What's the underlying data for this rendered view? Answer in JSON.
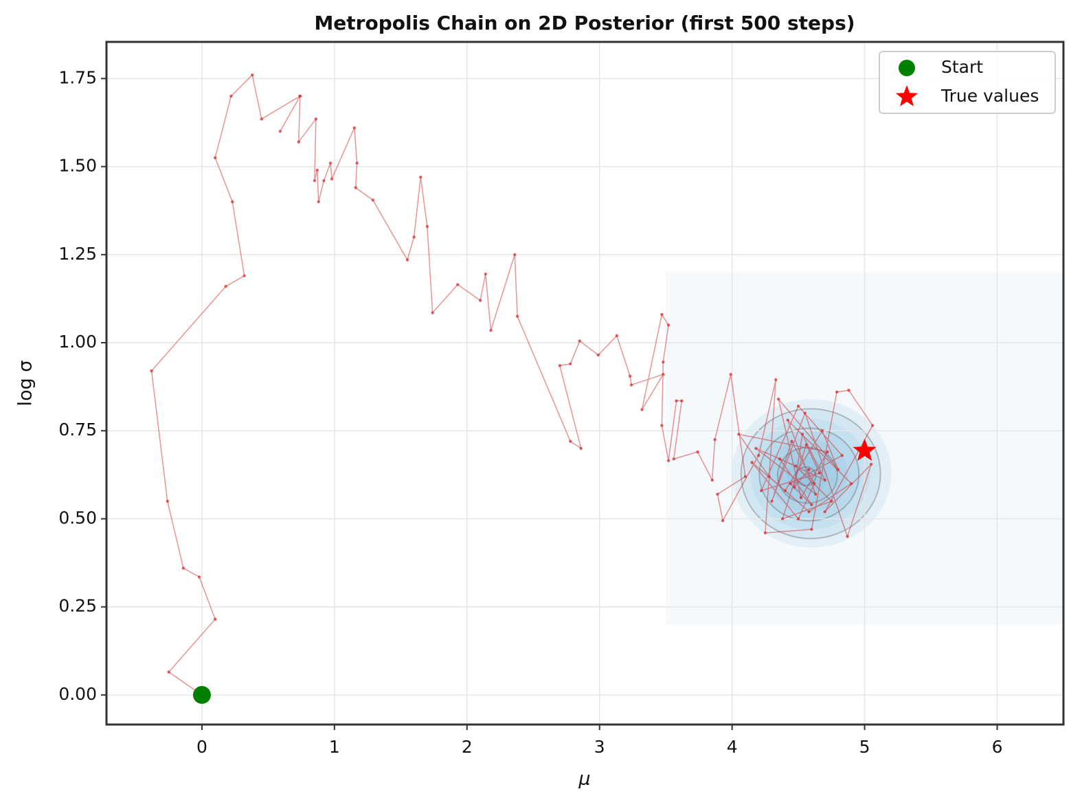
{
  "chart_data": {
    "type": "trace",
    "title": "Metropolis Chain on 2D Posterior (first 500 steps)",
    "x_label": "μ",
    "y_label": "log σ",
    "xlim": [
      -0.72,
      6.5
    ],
    "ylim": [
      -0.084,
      1.854
    ],
    "xticks": [
      0,
      1,
      2,
      3,
      4,
      5,
      6
    ],
    "yticks": [
      {
        "value": 0,
        "label": "0.00"
      },
      0.25,
      {
        "value": 0.5,
        "label": "0.50"
      },
      0.75,
      {
        "value": 1,
        "label": "1.00"
      },
      1.25,
      {
        "value": 1.5,
        "label": "1.50"
      },
      1.75
    ],
    "grid": true,
    "legend": "upper right",
    "posterior": {
      "center": [
        4.55,
        0.62
      ],
      "xlim": [
        3.5,
        6.5
      ],
      "ylim": [
        0.2,
        1.2
      ],
      "color": "#6baed6"
    },
    "chain": {
      "color": "#d62728",
      "x": [
        0,
        -0.25,
        0.1,
        -0.02,
        -0.14,
        -0.26,
        -0.38,
        0.18,
        0.32,
        0.23,
        0.1,
        0.22,
        0.38,
        0.45,
        0.74,
        0.59,
        0.74,
        0.73,
        0.86,
        0.85,
        0.87,
        0.88,
        0.92,
        0.97,
        0.98,
        1.15,
        1.17,
        1.16,
        1.29,
        1.55,
        1.6,
        1.65,
        1.7,
        1.74,
        1.93,
        2.1,
        2.14,
        2.18,
        2.36,
        2.38,
        2.78,
        2.86,
        2.7,
        2.78,
        2.85,
        2.99,
        3.13,
        3.23,
        3.24,
        3.48,
        3.32,
        3.47,
        3.52,
        3.48,
        3.47,
        3.52,
        3.58,
        3.62,
        3.56,
        3.74,
        3.85,
        3.87,
        3.99,
        4.1,
        3.89,
        3.93,
        4.2,
        4.33,
        4.25,
        4.6,
        4.79,
        4.88,
        5.06,
        4.7,
        5.05,
        4.87,
        4.55,
        4.3,
        4.45,
        4.62,
        4.5,
        4.15,
        4.4,
        4.68,
        4.8,
        4.35,
        4.52,
        4.72,
        4.05,
        4.28,
        4.58,
        4.9,
        4.42,
        4.63,
        4.18,
        4.48,
        4.75,
        4.38,
        4.56,
        4.66,
        4.22,
        4.5,
        4.83,
        4.44,
        4.6,
        4.36,
        4.7,
        4.53,
        4.47,
        4.58
      ],
      "y": [
        0,
        0.065,
        0.215,
        0.335,
        0.36,
        0.55,
        0.92,
        1.16,
        1.19,
        1.4,
        1.525,
        1.7,
        1.76,
        1.635,
        1.7,
        1.6,
        1.7,
        1.57,
        1.635,
        1.46,
        1.49,
        1.4,
        1.46,
        1.51,
        1.465,
        1.61,
        1.51,
        1.44,
        1.405,
        1.235,
        1.3,
        1.47,
        1.33,
        1.085,
        1.165,
        1.12,
        1.195,
        1.035,
        1.25,
        1.075,
        0.72,
        0.7,
        0.935,
        0.94,
        1.005,
        0.965,
        1.02,
        0.905,
        0.88,
        0.91,
        0.81,
        1.08,
        1.05,
        0.945,
        0.765,
        0.665,
        0.835,
        0.835,
        0.67,
        0.69,
        0.61,
        0.725,
        0.91,
        0.62,
        0.57,
        0.495,
        0.68,
        0.895,
        0.46,
        0.47,
        0.86,
        0.865,
        0.765,
        0.52,
        0.655,
        0.45,
        0.8,
        0.55,
        0.72,
        0.6,
        0.5,
        0.66,
        0.58,
        0.75,
        0.64,
        0.84,
        0.56,
        0.69,
        0.74,
        0.62,
        0.52,
        0.6,
        0.78,
        0.57,
        0.7,
        0.65,
        0.55,
        0.5,
        0.71,
        0.63,
        0.58,
        0.82,
        0.68,
        0.6,
        0.54,
        0.67,
        0.61,
        0.74,
        0.59,
        0.64
      ]
    },
    "series": [
      {
        "name": "Start",
        "color": "#008000",
        "marker": "circle",
        "x": [
          0
        ],
        "y": [
          0
        ]
      },
      {
        "name": "True values",
        "color": "#ff0000",
        "marker": "star",
        "x": [
          5
        ],
        "y": [
          0.693
        ]
      }
    ]
  }
}
